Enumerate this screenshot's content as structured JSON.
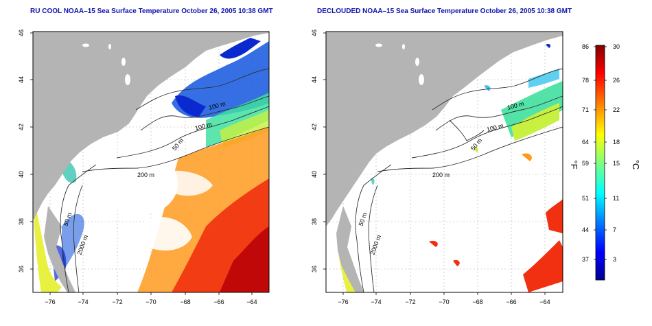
{
  "panels": [
    {
      "title": "RU COOL NOAA–15 Sea Surface Temperature October 26, 2005 10:38 GMT",
      "variant": "raw",
      "x_ticks": [
        "−76",
        "−74",
        "−72",
        "−70",
        "−68",
        "−66",
        "−64"
      ],
      "y_ticks": [
        "46",
        "44",
        "42",
        "40",
        "38",
        "36"
      ],
      "contour_labels": [
        "100 m",
        "100 m",
        "50 m",
        "200 m",
        "50 m",
        "2000 m"
      ]
    },
    {
      "title": "DECLOUDED NOAA–15 Sea Surface Temperature October 26, 2005 10:38 GMT",
      "variant": "declouded",
      "x_ticks": [
        "−76",
        "−74",
        "−72",
        "−70",
        "−68",
        "−66",
        "−64"
      ],
      "y_ticks": [
        "46",
        "44",
        "42",
        "40",
        "38",
        "36"
      ],
      "contour_labels": [
        "100 m",
        "100 m",
        "50 m",
        "200 m",
        "50 m",
        "2000 m"
      ]
    }
  ],
  "colorbar": {
    "fahrenheit_label": "°F",
    "celsius_label": "°C",
    "fahrenheit_ticks": [
      "86",
      "78",
      "71",
      "64",
      "59",
      "51",
      "44",
      "37"
    ],
    "celsius_ticks": [
      "30",
      "26",
      "22",
      "18",
      "15",
      "11",
      "7",
      "3"
    ],
    "colors": [
      "#00008f",
      "#0000ff",
      "#0080ff",
      "#00ffff",
      "#80ff80",
      "#ffff00",
      "#ff8000",
      "#ff0000",
      "#800000"
    ]
  },
  "colors": {
    "land": "#b4b4b4",
    "ocean_bg": "#ffffff",
    "title": "#1010b0",
    "contour": "#303030",
    "grid": "#b0b0b0"
  }
}
